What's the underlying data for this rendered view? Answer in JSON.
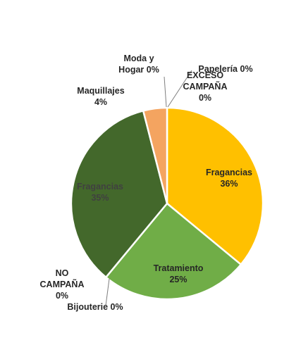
{
  "chart_data": {
    "type": "pie",
    "title": "",
    "slices": [
      {
        "label": "Fragancias",
        "value": 36,
        "value_label": "36%",
        "color": "#ffc000",
        "text_color": "#262626"
      },
      {
        "label": "Tratamiento",
        "value": 25,
        "value_label": "25%",
        "color": "#70ad47",
        "text_color": "#262626"
      },
      {
        "label": "Bijouterie",
        "value": 0,
        "value_label": "0%",
        "color": "#a5a5a5",
        "text_color": "#262626"
      },
      {
        "label": "NO CAMPAÑA",
        "value": 0,
        "value_label": "0%",
        "color": "#264478",
        "text_color": "#262626"
      },
      {
        "label": "Fragancias",
        "value": 35,
        "value_label": "35%",
        "color": "#43682b",
        "text_color": "#404040"
      },
      {
        "label": "Maquillajes",
        "value": 4,
        "value_label": "4%",
        "color": "#f4a460",
        "text_color": "#262626"
      },
      {
        "label": "Moda y Hogar",
        "value": 0,
        "value_label": "0%",
        "color": "#5b9bd5",
        "text_color": "#262626"
      },
      {
        "label": "Papelería",
        "value": 0,
        "value_label": "0%",
        "color": "#4472c4",
        "text_color": "#262626"
      },
      {
        "label": "EXCESO CAMPAÑA",
        "value": 0,
        "value_label": "0%",
        "color": "#9e480e",
        "text_color": "#262626"
      }
    ],
    "legend": "none",
    "data_labels": "category and percentage"
  }
}
